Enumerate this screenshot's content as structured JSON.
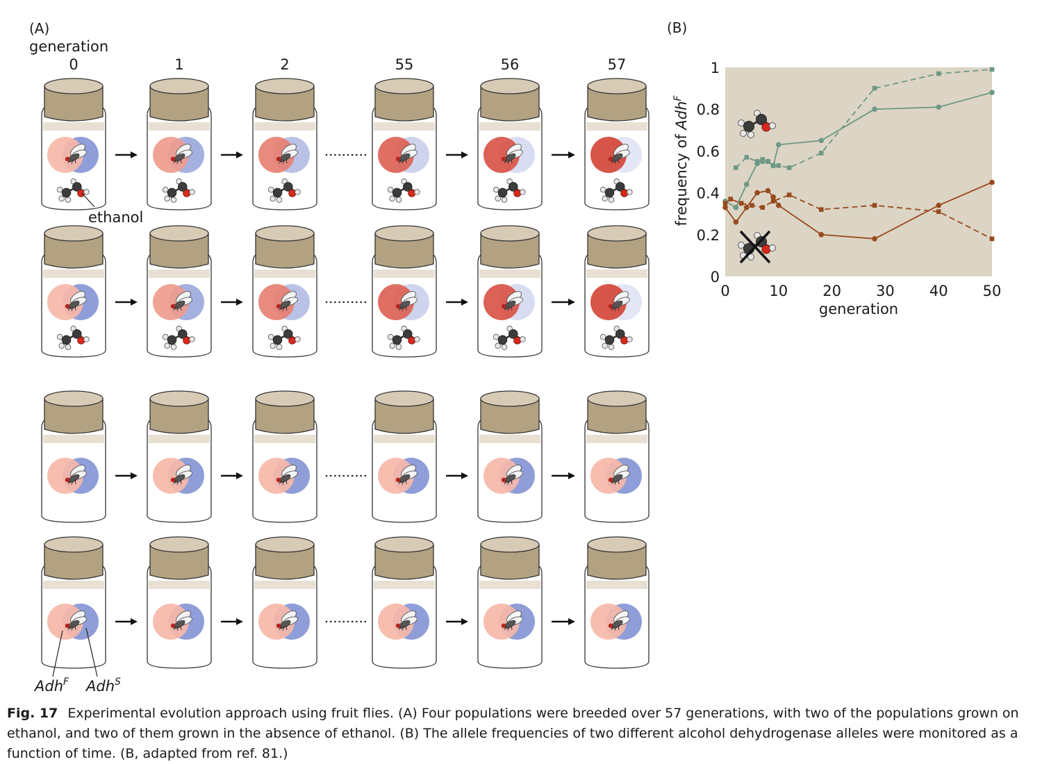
{
  "panel_a": {
    "label": "(A)",
    "generation_title": "generation",
    "generations": [
      "0",
      "1",
      "2",
      "55",
      "56",
      "57"
    ],
    "ethanol_label": "ethanol",
    "allele_f_label": "Adh",
    "allele_f_sup": "F",
    "allele_s_label": "Adh",
    "allele_s_sup": "S",
    "rows": [
      {
        "condition": "ethanol",
        "adhF_share": [
          0.5,
          0.6,
          0.7,
          0.8,
          0.85,
          0.9
        ]
      },
      {
        "condition": "ethanol",
        "adhF_share": [
          0.5,
          0.6,
          0.7,
          0.8,
          0.85,
          0.9
        ]
      },
      {
        "condition": "no-ethanol",
        "adhF_share": [
          0.5,
          0.5,
          0.5,
          0.5,
          0.5,
          0.5
        ]
      },
      {
        "condition": "no-ethanol",
        "adhF_share": [
          0.5,
          0.5,
          0.5,
          0.5,
          0.5,
          0.5
        ]
      }
    ],
    "colors": {
      "cap": "#b2a282",
      "cap_top": "#d7cbb6",
      "adhF_light": "#f6b9a9",
      "adhF_dark": "#d5463a",
      "adhS_strong": "#8f9ed8",
      "adhS_faint": "#e3e6f4"
    }
  },
  "panel_b": {
    "label": "(B)",
    "chart_data": {
      "type": "line",
      "xlabel": "generation",
      "ylabel": "frequency of ",
      "ylabel_italic": "Adh",
      "ylabel_sup": "F",
      "xlim": [
        0,
        50
      ],
      "ylim": [
        0,
        1
      ],
      "xticks": [
        0,
        10,
        20,
        30,
        40,
        50
      ],
      "yticks": [
        0,
        0.2,
        0.4,
        0.6,
        0.8,
        1
      ],
      "ytick_labels": [
        "0",
        "0.2",
        "0.4",
        "0.6",
        "0.8",
        "1"
      ],
      "background": "#dcd4c4",
      "series": [
        {
          "condition": "ethanol",
          "style": "solid",
          "marker": "circle",
          "color": "#6f9886",
          "x": [
            0,
            2,
            4,
            6,
            7,
            8,
            9,
            10,
            18,
            28,
            40,
            50
          ],
          "y": [
            0.36,
            0.33,
            0.44,
            0.54,
            0.55,
            0.55,
            0.53,
            0.63,
            0.65,
            0.8,
            0.81,
            0.88
          ]
        },
        {
          "condition": "ethanol",
          "style": "dashed",
          "marker": "square",
          "color": "#6f9886",
          "x": [
            2,
            4,
            6,
            7,
            8,
            9,
            10,
            12,
            18,
            28,
            40,
            50
          ],
          "y": [
            0.52,
            0.57,
            0.55,
            0.56,
            0.55,
            0.53,
            0.53,
            0.52,
            0.59,
            0.9,
            0.97,
            0.99
          ]
        },
        {
          "condition": "no-ethanol",
          "style": "solid",
          "marker": "circle",
          "color": "#974a1e",
          "x": [
            0,
            2,
            4,
            6,
            8,
            9,
            10,
            18,
            28,
            40,
            50
          ],
          "y": [
            0.33,
            0.26,
            0.33,
            0.4,
            0.41,
            0.38,
            0.34,
            0.2,
            0.18,
            0.34,
            0.45
          ]
        },
        {
          "condition": "no-ethanol",
          "style": "dashed",
          "marker": "square",
          "color": "#974a1e",
          "x": [
            0,
            1,
            3,
            5,
            7,
            9,
            12,
            18,
            28,
            40,
            50
          ],
          "y": [
            0.35,
            0.37,
            0.35,
            0.34,
            0.33,
            0.36,
            0.39,
            0.32,
            0.34,
            0.31,
            0.18
          ]
        }
      ]
    }
  },
  "caption": {
    "fig_label": "Fig. 17",
    "text": "Experimental evolution approach using fruit flies. (A) Four populations were breeded over 57 generations, with two of the populations grown on ethanol, and two of them grown in the absence of ethanol. (B) The allele frequencies of two different alcohol dehydrogenase alleles were monitored as a function of time. (B, adapted from ref. 81.)"
  }
}
